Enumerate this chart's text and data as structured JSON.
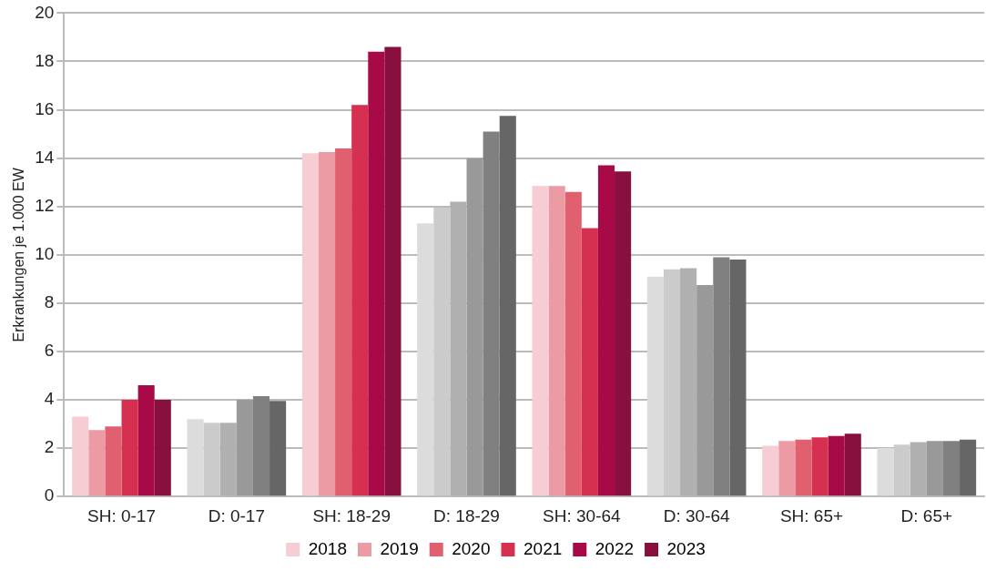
{
  "chart_data": {
    "type": "bar",
    "ylabel": "Erkrankungen je 1.000 EW",
    "categories": [
      "SH: 0-17",
      "D: 0-17",
      "SH: 18-29",
      "D: 18-29",
      "SH: 30-64",
      "D: 30-64",
      "SH: 65+",
      "D: 65+"
    ],
    "series": [
      {
        "name": "2018",
        "color": "#f7cdd4",
        "colors": [
          "#f7cdd4",
          "#dcdcdc",
          "#f7cdd4",
          "#dcdcdc",
          "#f7cdd4",
          "#dcdcdc",
          "#f7cdd4",
          "#dcdcdc"
        ],
        "values": [
          3.3,
          3.2,
          14.2,
          11.3,
          12.85,
          9.1,
          2.1,
          2.0
        ]
      },
      {
        "name": "2019",
        "color": "#ec9aa3",
        "colors": [
          "#ec9aa3",
          "#cbcbcb",
          "#ec9aa3",
          "#cbcbcb",
          "#ec9aa3",
          "#cbcbcb",
          "#ec9aa3",
          "#cbcbcb"
        ],
        "values": [
          2.75,
          3.05,
          14.25,
          11.95,
          12.85,
          9.4,
          2.3,
          2.15
        ]
      },
      {
        "name": "2020",
        "color": "#e06070",
        "colors": [
          "#e06070",
          "#b0b0b0",
          "#e06070",
          "#b0b0b0",
          "#e06070",
          "#b0b0b0",
          "#e06070",
          "#b0b0b0"
        ],
        "values": [
          2.9,
          3.05,
          14.4,
          12.2,
          12.6,
          9.45,
          2.35,
          2.25
        ]
      },
      {
        "name": "2021",
        "color": "#d63050",
        "colors": [
          "#d63050",
          "#999999",
          "#d63050",
          "#999999",
          "#d63050",
          "#999999",
          "#d63050",
          "#999999"
        ],
        "values": [
          4.0,
          4.0,
          16.2,
          14.0,
          11.1,
          8.75,
          2.45,
          2.3
        ]
      },
      {
        "name": "2022",
        "color": "#a80a48",
        "colors": [
          "#a80a48",
          "#808080",
          "#a80a48",
          "#808080",
          "#a80a48",
          "#808080",
          "#a80a48",
          "#808080"
        ],
        "values": [
          4.6,
          4.15,
          18.4,
          15.1,
          13.7,
          9.9,
          2.5,
          2.3
        ]
      },
      {
        "name": "2023",
        "color": "#88103f",
        "colors": [
          "#88103f",
          "#666666",
          "#88103f",
          "#666666",
          "#88103f",
          "#666666",
          "#88103f",
          "#666666"
        ],
        "values": [
          4.0,
          3.95,
          18.6,
          15.75,
          13.45,
          9.8,
          2.6,
          2.35
        ]
      }
    ],
    "ylim": [
      0,
      20
    ],
    "yticks": [
      0,
      2,
      4,
      6,
      8,
      10,
      12,
      14,
      16,
      18,
      20
    ],
    "grid": "y",
    "legend": "bottom"
  }
}
